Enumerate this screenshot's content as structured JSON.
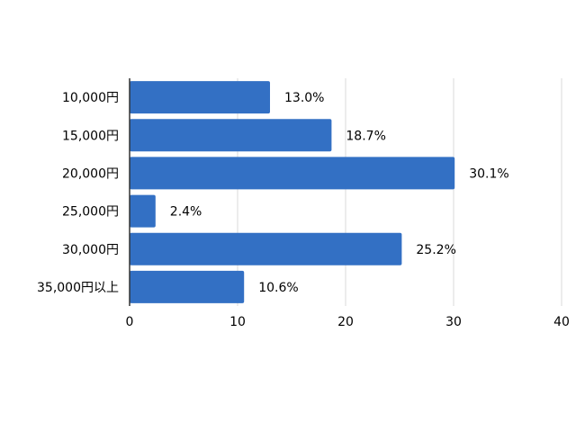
{
  "chart_data": {
    "type": "bar",
    "orientation": "horizontal",
    "categories": [
      "10,000円",
      "15,000円",
      "20,000円",
      "25,000円",
      "30,000円",
      "35,000円以上"
    ],
    "values": [
      13.0,
      18.7,
      30.1,
      2.4,
      25.2,
      10.6
    ],
    "data_labels": [
      "13.0%",
      "18.7%",
      "30.1%",
      "2.4%",
      "25.2%",
      "10.6%"
    ],
    "xlim": [
      0,
      40
    ],
    "xticks": [
      0,
      10,
      20,
      30,
      40
    ],
    "grid": "vertical",
    "legend": "none",
    "title": "",
    "xlabel": "",
    "ylabel": "",
    "colors": {
      "bar": "#3370c4",
      "grid": "#d9d9d9",
      "axis": "#333333"
    }
  }
}
